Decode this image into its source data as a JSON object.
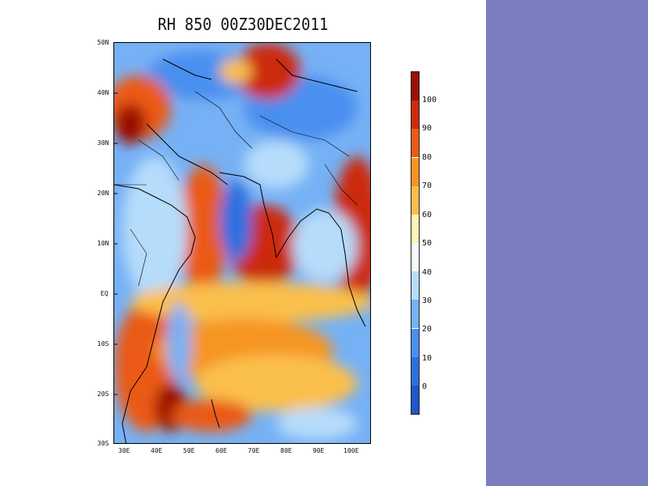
{
  "title": "RH 850 00Z30DEC2011",
  "colors": {
    "side_panel": "#7b7ebe"
  },
  "map": {
    "lat_labels": [
      "50N",
      "40N",
      "30N",
      "20N",
      "10N",
      "EQ",
      "10S",
      "20S",
      "30S"
    ],
    "lon_labels": [
      "30E",
      "40E",
      "50E",
      "60E",
      "70E",
      "80E",
      "90E",
      "100E"
    ],
    "lat_range": [
      -30,
      50
    ],
    "lon_range": [
      27,
      107
    ]
  },
  "colorbar": {
    "labels": [
      "0",
      "10",
      "20",
      "30",
      "40",
      "50",
      "60",
      "70",
      "80",
      "90",
      "100"
    ],
    "colors": [
      "#1f56c8",
      "#2d6fe0",
      "#4a8ff0",
      "#76b1f5",
      "#b6dcfb",
      "#f4fbff",
      "#fff4b5",
      "#fbbf4c",
      "#f69521",
      "#ea5a18",
      "#cc2b0d",
      "#9c1006"
    ]
  }
}
